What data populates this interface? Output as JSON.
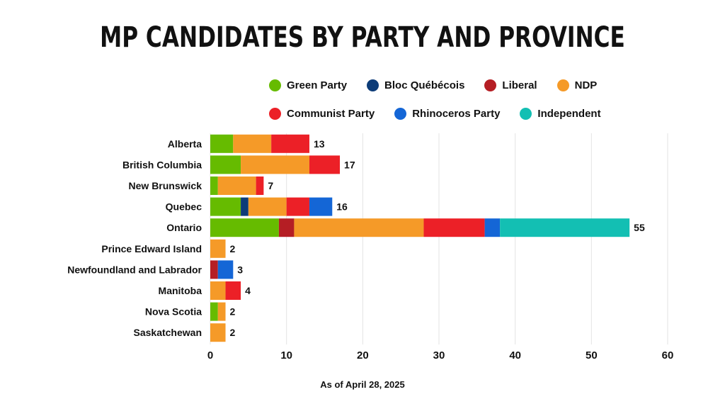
{
  "chart_data": {
    "type": "bar",
    "orientation": "horizontal",
    "stacked": true,
    "title": "MP CANDIDATES BY PARTY AND PROVINCE",
    "xlim": [
      0,
      60
    ],
    "xticks": [
      0,
      10,
      20,
      30,
      40,
      50,
      60
    ],
    "grid": true,
    "legend_position": "top-right",
    "categories": [
      "Alberta",
      "British Columbia",
      "New Brunswick",
      "Quebec",
      "Ontario",
      "Prince Edward Island",
      "Newfoundland and Labrador",
      "Manitoba",
      "Nova Scotia",
      "Saskatchewan"
    ],
    "totals": [
      13,
      17,
      7,
      16,
      55,
      2,
      3,
      4,
      2,
      2
    ],
    "series": [
      {
        "name": "Green Party",
        "color": "#66bb00",
        "values": [
          3,
          4,
          1,
          4,
          9,
          0,
          0,
          0,
          1,
          0
        ]
      },
      {
        "name": "Bloc Québécois",
        "color": "#0d3c78",
        "values": [
          0,
          0,
          0,
          1,
          0,
          0,
          0,
          0,
          0,
          0
        ]
      },
      {
        "name": "Liberal",
        "color": "#b51e24",
        "values": [
          0,
          0,
          0,
          0,
          2,
          0,
          1,
          0,
          0,
          0
        ]
      },
      {
        "name": "NDP",
        "color": "#f59a28",
        "values": [
          5,
          9,
          5,
          5,
          17,
          2,
          0,
          2,
          1,
          2
        ]
      },
      {
        "name": "Communist Party",
        "color": "#ec2027",
        "values": [
          5,
          4,
          1,
          3,
          8,
          0,
          0,
          2,
          0,
          0
        ]
      },
      {
        "name": "Rhinoceros Party",
        "color": "#1466d6",
        "values": [
          0,
          0,
          0,
          3,
          2,
          0,
          2,
          0,
          0,
          0
        ]
      },
      {
        "name": "Independent",
        "color": "#13bfb3",
        "values": [
          0,
          0,
          0,
          0,
          17,
          0,
          0,
          0,
          0,
          0
        ]
      }
    ],
    "legend_rows": [
      [
        "Green Party",
        "Bloc Québécois",
        "Liberal",
        "NDP"
      ],
      [
        "Communist Party",
        "Rhinoceros Party",
        "Independent"
      ]
    ]
  },
  "footnote": "As of April 28, 2025"
}
